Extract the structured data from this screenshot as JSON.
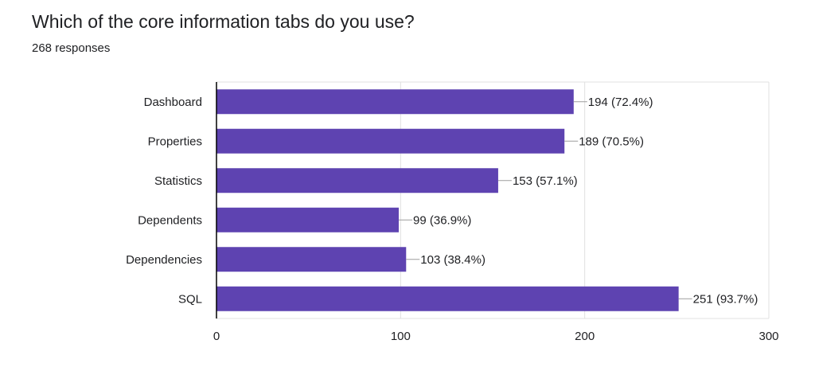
{
  "form": {
    "question": "Which of the core information tabs do you use?",
    "responses": "268 responses"
  },
  "colors": {
    "bar": "#5e43b1",
    "grid": "#e0e0e0",
    "axis": "#000000",
    "leader": "#9e9e9e",
    "text": "#202124"
  },
  "chart_data": {
    "type": "bar",
    "orientation": "horizontal",
    "categories": [
      "Dashboard",
      "Properties",
      "Statistics",
      "Dependents",
      "Dependencies",
      "SQL"
    ],
    "values": [
      194,
      189,
      153,
      99,
      103,
      251
    ],
    "data_labels": [
      "194 (72.4%)",
      "189 (70.5%)",
      "153 (57.1%)",
      "99 (36.9%)",
      "103 (38.4%)",
      "251 (93.7%)"
    ],
    "xlim": [
      0,
      300
    ],
    "xticks": [
      0,
      100,
      200,
      300
    ],
    "grid": true,
    "legend": "none"
  }
}
